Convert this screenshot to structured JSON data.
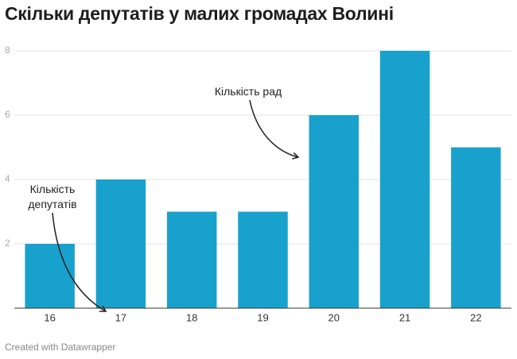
{
  "chart_data": {
    "type": "bar",
    "title": "Скільки депутатів у малих громадах Волині",
    "categories": [
      "16",
      "17",
      "18",
      "19",
      "20",
      "21",
      "22"
    ],
    "values": [
      2,
      4,
      3,
      3,
      6,
      8,
      5
    ],
    "color": "#19a1cd",
    "ylim": [
      0,
      8
    ],
    "yticks": [
      2,
      4,
      6,
      8
    ],
    "grid": true,
    "annotations": [
      "Кількість рад",
      "Кількість депутатів"
    ],
    "footer": "Created with Datawrapper"
  }
}
